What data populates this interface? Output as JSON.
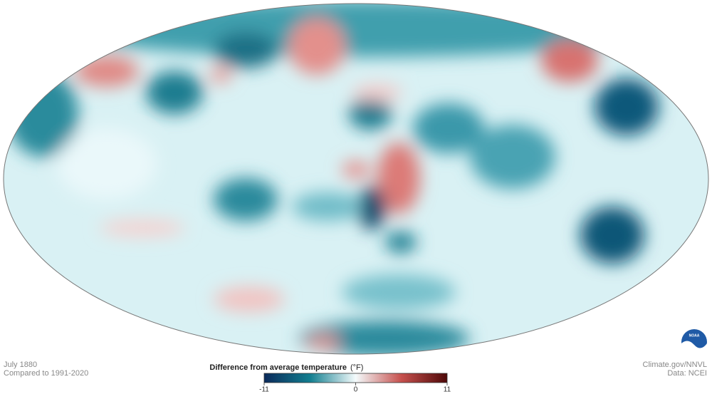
{
  "header": {
    "date": "July 1880",
    "baseline": "Compared to 1991-2020"
  },
  "credits": {
    "source": "Climate.gov/NNVL",
    "data": "Data: NCEI",
    "logo": "NOAA"
  },
  "legend": {
    "title": "Difference from average temperature",
    "unit": "(°F)",
    "lim": [
      -11,
      11
    ],
    "ticks": [
      -11,
      0,
      11
    ]
  }
}
